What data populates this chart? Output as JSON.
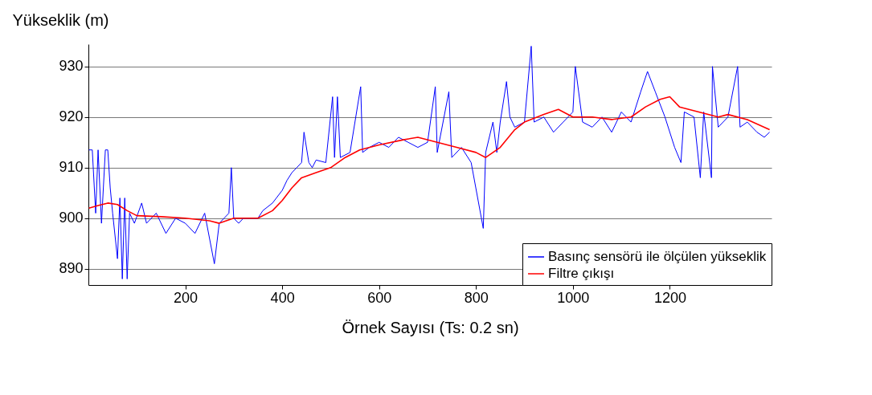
{
  "chart_data": {
    "type": "line",
    "xlabel": "Örnek Sayısı (Ts: 0.2 sn)",
    "ylabel": "Yükseklik (m)",
    "xlim": [
      0,
      1410
    ],
    "ylim": [
      886.8,
      934.4
    ],
    "xticks": [
      200,
      400,
      600,
      800,
      1000,
      1200
    ],
    "yticks": [
      890,
      900,
      910,
      920,
      930
    ],
    "grid": "y",
    "legend": "bottom right",
    "line_style": "solid",
    "marker": "none",
    "series": [
      {
        "name": "Basınç sensörü ile ölçülen yükseklik",
        "color": "#0000ff",
        "x": [
          1,
          8,
          15,
          20,
          27,
          35,
          40,
          45,
          50,
          60,
          65,
          70,
          75,
          80,
          85,
          95,
          110,
          120,
          140,
          160,
          180,
          200,
          220,
          240,
          260,
          270,
          280,
          290,
          295,
          300,
          310,
          320,
          350,
          360,
          380,
          400,
          410,
          420,
          430,
          440,
          445,
          455,
          462,
          470,
          490,
          504,
          508,
          514,
          520,
          540,
          562,
          566,
          580,
          600,
          620,
          640,
          660,
          680,
          700,
          716,
          720,
          744,
          750,
          770,
          790,
          815,
          820,
          835,
          843,
          850,
          863,
          870,
          880,
          900,
          914,
          920,
          940,
          960,
          980,
          1000,
          1005,
          1020,
          1040,
          1060,
          1080,
          1100,
          1120,
          1140,
          1154,
          1170,
          1190,
          1210,
          1223,
          1230,
          1250,
          1263,
          1270,
          1286,
          1288,
          1300,
          1320,
          1340,
          1345,
          1360,
          1380,
          1395,
          1406
        ],
        "values": [
          913.5,
          913.5,
          901,
          913.5,
          899,
          913.5,
          913.5,
          906,
          901,
          892,
          904,
          888,
          904,
          888,
          901,
          899,
          903,
          899,
          901,
          897,
          900,
          899,
          897,
          901,
          891,
          899,
          900,
          901,
          910,
          900,
          899,
          900,
          900,
          901.5,
          903,
          905.5,
          907.5,
          909,
          910,
          911,
          917,
          911,
          910,
          911.5,
          911,
          924,
          912,
          924,
          912,
          913,
          926,
          913,
          914,
          915,
          914,
          916,
          915,
          914,
          915,
          926,
          913,
          925,
          912,
          914,
          911,
          898,
          913,
          919,
          913,
          919,
          927,
          920,
          918,
          919,
          934,
          919,
          920,
          917,
          919,
          921,
          930,
          919,
          918,
          920,
          917,
          921,
          919,
          925,
          929,
          925,
          920,
          914,
          911,
          921,
          920,
          908,
          921,
          908,
          930,
          918,
          920,
          930,
          918,
          919,
          917,
          916,
          917
        ]
      },
      {
        "name": "Filtre çıkışı",
        "color": "#ff0000",
        "x": [
          1,
          20,
          40,
          60,
          80,
          100,
          150,
          200,
          250,
          270,
          300,
          350,
          380,
          400,
          420,
          440,
          470,
          500,
          530,
          560,
          600,
          650,
          680,
          720,
          760,
          800,
          820,
          850,
          880,
          900,
          940,
          970,
          1000,
          1040,
          1080,
          1120,
          1150,
          1180,
          1200,
          1220,
          1260,
          1300,
          1320,
          1360,
          1406
        ],
        "values": [
          902,
          902.5,
          903,
          902.7,
          901.5,
          900.5,
          900.3,
          900,
          899.5,
          899,
          900,
          900,
          901.5,
          903.5,
          906,
          908,
          909,
          910,
          912,
          913.5,
          914.5,
          915.5,
          916,
          915,
          914,
          913,
          912,
          914,
          917.5,
          919,
          920.5,
          921.5,
          920,
          920,
          919.5,
          920,
          922,
          923.5,
          924,
          922,
          921,
          920,
          920.5,
          919.5,
          917.5
        ]
      }
    ]
  }
}
